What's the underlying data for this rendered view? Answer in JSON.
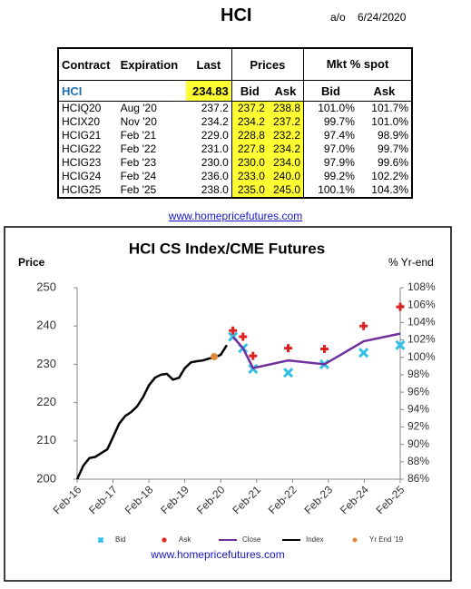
{
  "header": {
    "title": "HCI",
    "asof_label": "a/o",
    "date": "6/24/2020"
  },
  "table": {
    "header": [
      "Contract",
      "Expiration",
      "Last",
      "Prices",
      "Mkt % spot"
    ],
    "index_row": {
      "contract": "HCI",
      "last": "234.83",
      "subheader": [
        "Bid",
        "Ask",
        "Bid",
        "Ask"
      ]
    },
    "rows": [
      [
        "HCIQ20",
        "Aug '20",
        "237.2",
        "237.2",
        "238.8",
        "101.0%",
        "101.7%"
      ],
      [
        "HCIX20",
        "Nov '20",
        "234.2",
        "234.2",
        "237.2",
        "99.7%",
        "101.0%"
      ],
      [
        "HCIG21",
        "Feb '21",
        "229.0",
        "228.8",
        "232.2",
        "97.4%",
        "98.9%"
      ],
      [
        "HCIG22",
        "Feb '22",
        "231.0",
        "227.8",
        "234.2",
        "97.0%",
        "99.7%"
      ],
      [
        "HCIG23",
        "Feb '23",
        "230.0",
        "230.0",
        "234.0",
        "97.9%",
        "99.6%"
      ],
      [
        "HCIG24",
        "Feb '24",
        "236.0",
        "233.0",
        "240.0",
        "99.2%",
        "102.2%"
      ],
      [
        "HCIG25",
        "Feb '25",
        "238.0",
        "235.0",
        "245.0",
        "100.1%",
        "104.3%"
      ]
    ],
    "link": "www.homepricefutures.com"
  },
  "chart_data": {
    "type": "line",
    "title": "HCI CS Index/CME Futures",
    "ylabel": "Price",
    "y2label": "% Yr-end",
    "xlim": [
      2016.08,
      2025.08
    ],
    "xticks": [
      {
        "value": 2016.08,
        "label": "Feb-16"
      },
      {
        "value": 2017.08,
        "label": "Feb-17"
      },
      {
        "value": 2018.08,
        "label": "Feb-18"
      },
      {
        "value": 2019.08,
        "label": "Feb-19"
      },
      {
        "value": 2020.08,
        "label": "Feb-20"
      },
      {
        "value": 2021.08,
        "label": "Feb-21"
      },
      {
        "value": 2022.08,
        "label": "Feb-22"
      },
      {
        "value": 2023.08,
        "label": "Feb-23"
      },
      {
        "value": 2024.08,
        "label": "Feb-24"
      },
      {
        "value": 2025.08,
        "label": "Feb-25"
      }
    ],
    "ylim": [
      200,
      250
    ],
    "yticks": [
      200,
      210,
      220,
      230,
      240,
      250
    ],
    "y2lim": [
      86,
      108
    ],
    "y2ticks": [
      {
        "value": 86,
        "label": "86%"
      },
      {
        "value": 88,
        "label": "88%"
      },
      {
        "value": 90,
        "label": "90%"
      },
      {
        "value": 92,
        "label": "92%"
      },
      {
        "value": 94,
        "label": "94%"
      },
      {
        "value": 96,
        "label": "96%"
      },
      {
        "value": 98,
        "label": "98%"
      },
      {
        "value": 100,
        "label": "100%"
      },
      {
        "value": 102,
        "label": "102%"
      },
      {
        "value": 104,
        "label": "104%"
      },
      {
        "value": 106,
        "label": "106%"
      },
      {
        "value": 108,
        "label": "108%"
      }
    ],
    "series": [
      {
        "name": "Bid",
        "color": "#33c0e8",
        "marker": "x",
        "x": [
          2020.42,
          2020.7,
          2020.98,
          2021.96,
          2022.97,
          2024.06,
          2025.08
        ],
        "values": [
          237.2,
          234.2,
          228.8,
          227.8,
          230.0,
          233.0,
          235.0
        ]
      },
      {
        "name": "Ask",
        "color": "#dd2020",
        "marker": "plus",
        "x": [
          2020.42,
          2020.7,
          2020.98,
          2021.96,
          2022.97,
          2024.06,
          2025.08
        ],
        "values": [
          238.8,
          237.2,
          232.2,
          234.2,
          234.0,
          240.0,
          245.0
        ]
      },
      {
        "name": "Close",
        "color": "#7030a0",
        "marker": "line",
        "x": [
          2020.42,
          2020.7,
          2020.98,
          2021.96,
          2022.97,
          2024.06,
          2025.08
        ],
        "values": [
          237.2,
          234.2,
          229.0,
          231.0,
          230.0,
          236.0,
          238.0
        ]
      },
      {
        "name": "Index",
        "color": "#000000",
        "marker": "line",
        "x": [
          2016.08,
          2016.25,
          2016.42,
          2016.58,
          2016.75,
          2016.92,
          2017.08,
          2017.25,
          2017.42,
          2017.58,
          2017.75,
          2017.92,
          2018.08,
          2018.25,
          2018.42,
          2018.58,
          2018.75,
          2018.92,
          2019.08,
          2019.25,
          2019.42,
          2019.58,
          2019.75,
          2019.92,
          2020.08,
          2020.25
        ],
        "values": [
          200,
          203.5,
          205.5,
          205.8,
          206.8,
          207.8,
          211,
          214.5,
          216.5,
          217.5,
          219,
          221.5,
          224.5,
          226.5,
          227.3,
          227.5,
          226,
          226.5,
          229,
          230.5,
          230.8,
          231,
          231.5,
          231.8,
          232.5,
          235
        ]
      },
      {
        "name": "Yr End '19",
        "color": "#e0893c",
        "marker": "dot",
        "x": [
          2019.9
        ],
        "values": [
          232
        ]
      }
    ],
    "footer": "www.homepricefutures.com"
  }
}
